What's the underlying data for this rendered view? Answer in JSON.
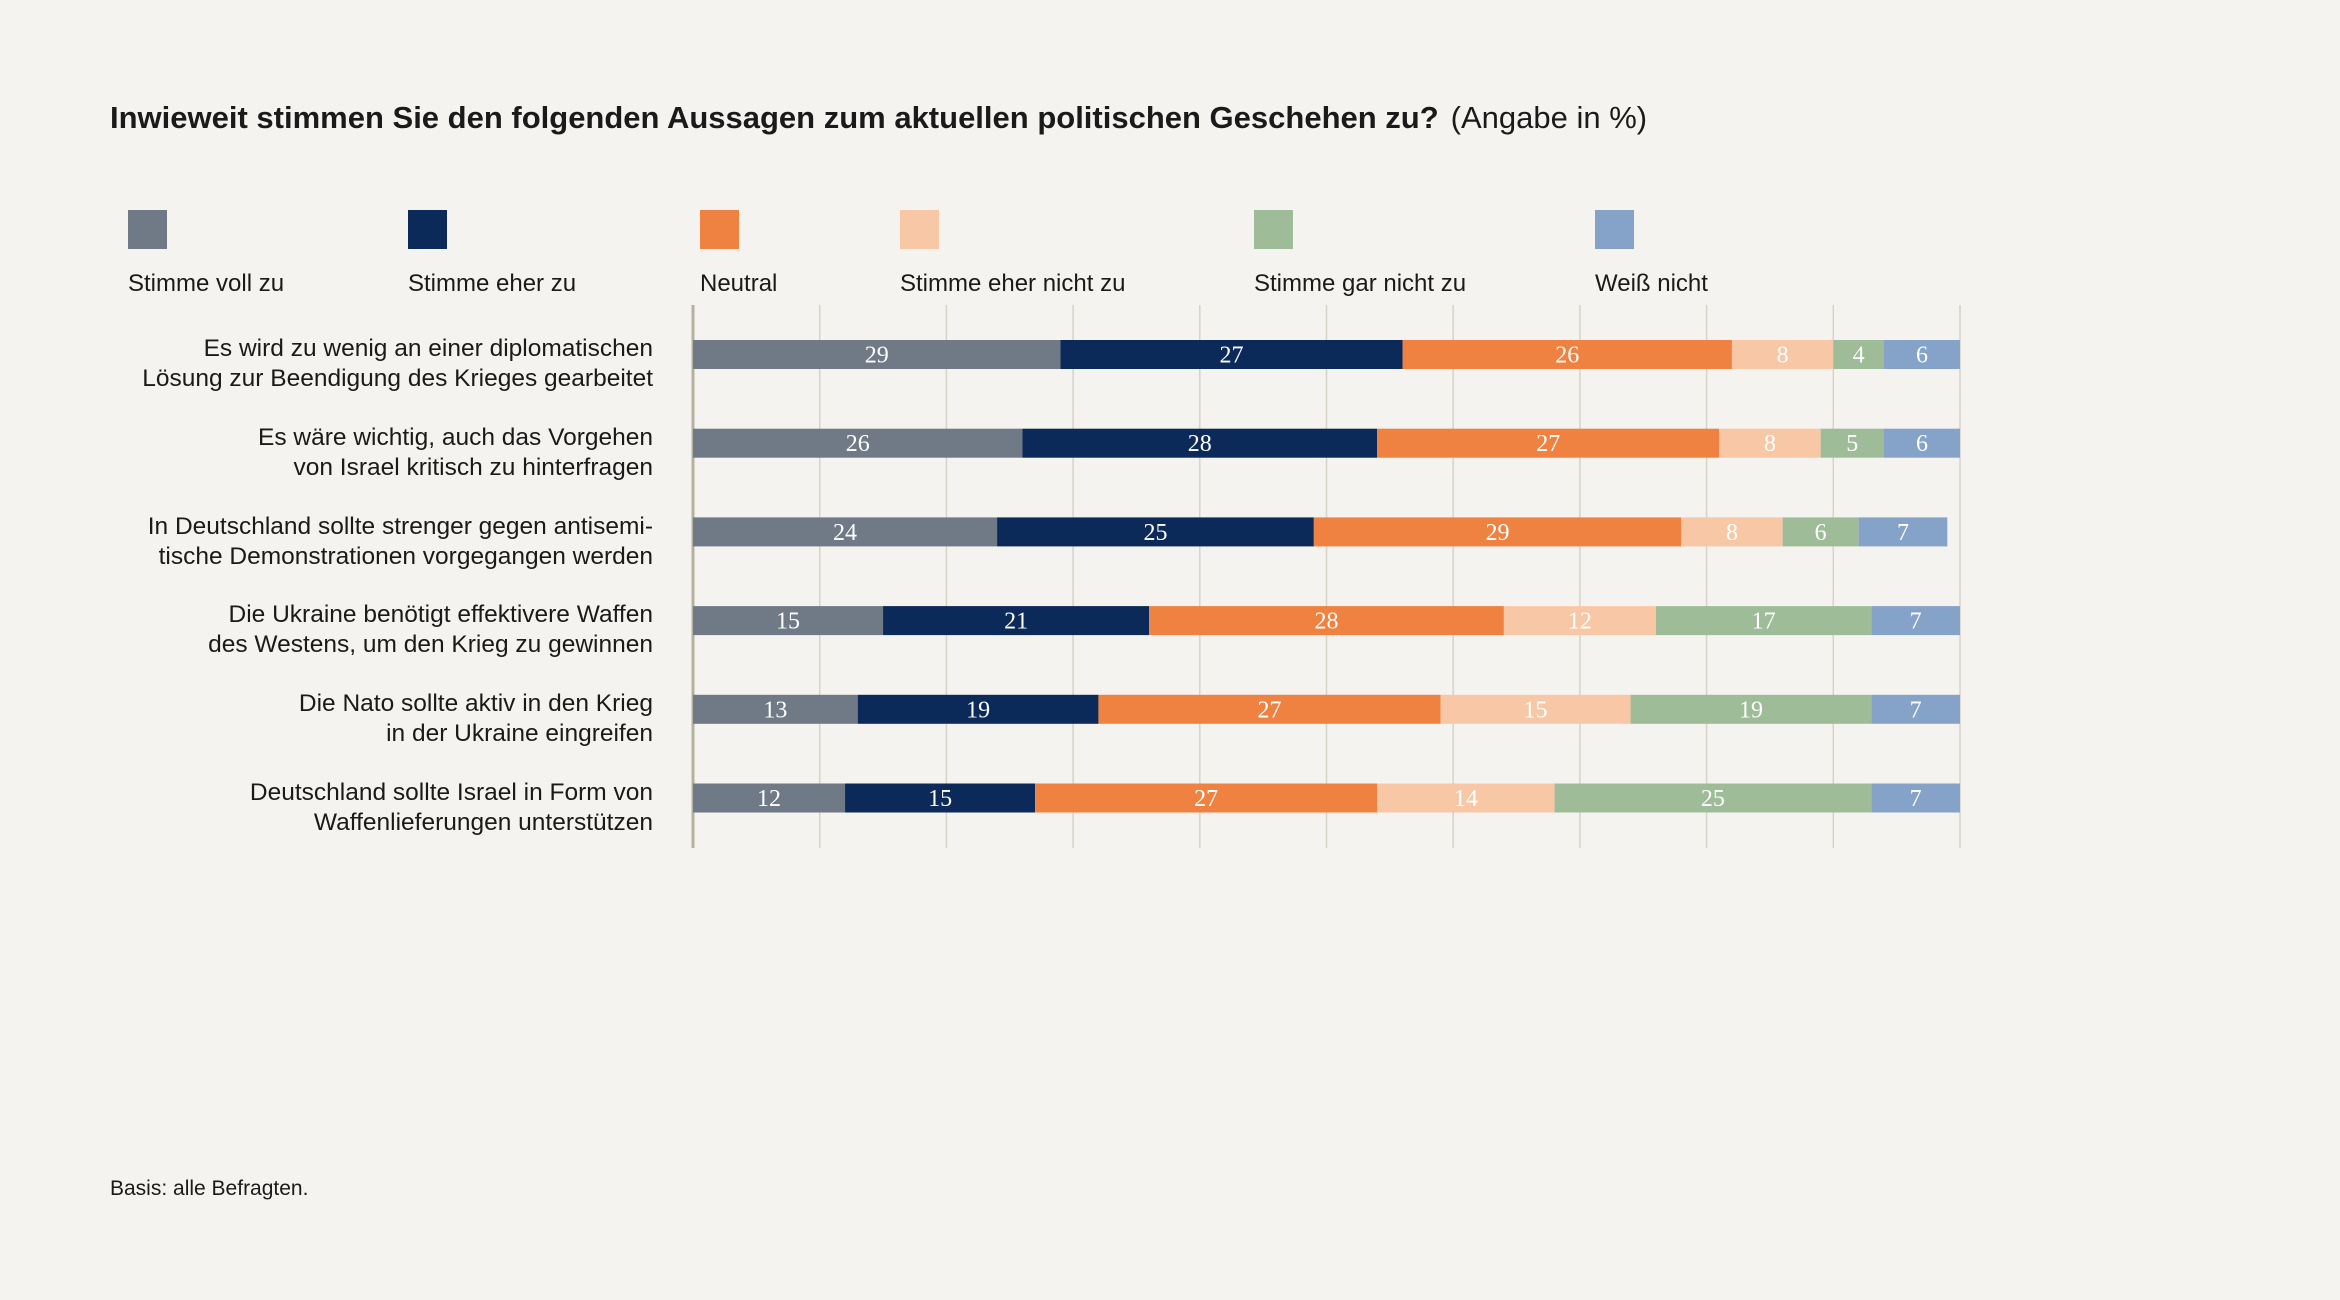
{
  "header": {
    "title": "Inwieweit stimmen Sie den folgenden Aussagen zum aktuellen politischen Geschehen zu?",
    "subtitle": "(Angabe in %)"
  },
  "legend": [
    {
      "label": "Stimme voll zu",
      "color": "#6f7a86"
    },
    {
      "label": "Stimme eher zu",
      "color": "#0b2a5a"
    },
    {
      "label": "Neutral",
      "color": "#ef8241"
    },
    {
      "label": "Stimme eher nicht zu",
      "color": "#f8c8a6"
    },
    {
      "label": "Stimme gar nicht zu",
      "color": "#9ebc98"
    },
    {
      "label": "Weiß nicht",
      "color": "#85a3c8"
    }
  ],
  "rows": [
    {
      "line1": "Es wird zu wenig an einer diplomatischen",
      "line2": "Lösung zur Beendigung des Krieges gearbeitet"
    },
    {
      "line1": "Es wäre wichtig, auch das Vorgehen",
      "line2": "von Israel kritisch zu hinterfragen"
    },
    {
      "line1": "In Deutschland sollte strenger gegen antisemi-",
      "line2": "tische Demonstrationen vorgegangen werden"
    },
    {
      "line1": "Die Ukraine benötigt effektivere Waffen",
      "line2": "des Westens, um den Krieg zu gewinnen"
    },
    {
      "line1": "Die Nato sollte aktiv in den Krieg",
      "line2": "in der Ukraine eingreifen"
    },
    {
      "line1": "Deutschland sollte Israel in Form von",
      "line2": "Waffenlieferungen unterstützen"
    }
  ],
  "chart_data": {
    "type": "bar",
    "orientation": "horizontal",
    "stacked": true,
    "title": "Inwieweit stimmen Sie den folgenden Aussagen zum aktuellen politischen Geschehen zu?",
    "subtitle": "(Angabe in %)",
    "xlim": [
      0,
      100
    ],
    "grid": true,
    "legend_position": "top",
    "categories": [
      "Es wird zu wenig an einer diplomatischen Lösung zur Beendigung des Krieges gearbeitet",
      "Es wäre wichtig, auch das Vorgehen von Israel kritisch zu hinterfragen",
      "In Deutschland sollte strenger gegen antisemitische Demonstrationen vorgegangen werden",
      "Die Ukraine benötigt effektivere Waffen des Westens, um den Krieg zu gewinnen",
      "Die Nato sollte aktiv in den Krieg in der Ukraine eingreifen",
      "Deutschland sollte Israel in Form von Waffenlieferungen unterstützen"
    ],
    "series": [
      {
        "name": "Stimme voll zu",
        "color": "#6f7a86",
        "values": [
          29,
          26,
          24,
          15,
          13,
          12
        ]
      },
      {
        "name": "Stimme eher zu",
        "color": "#0b2a5a",
        "values": [
          27,
          28,
          25,
          21,
          19,
          15
        ]
      },
      {
        "name": "Neutral",
        "color": "#ef8241",
        "values": [
          26,
          27,
          29,
          28,
          27,
          27
        ]
      },
      {
        "name": "Stimme eher nicht zu",
        "color": "#f8c8a6",
        "values": [
          8,
          8,
          8,
          12,
          15,
          14
        ]
      },
      {
        "name": "Stimme gar nicht zu",
        "color": "#9ebc98",
        "values": [
          4,
          5,
          6,
          17,
          19,
          25
        ]
      },
      {
        "name": "Weiß nicht",
        "color": "#85a3c8",
        "values": [
          6,
          6,
          7,
          7,
          7,
          7
        ]
      }
    ]
  },
  "footnote": "Basis: alle Befragten."
}
